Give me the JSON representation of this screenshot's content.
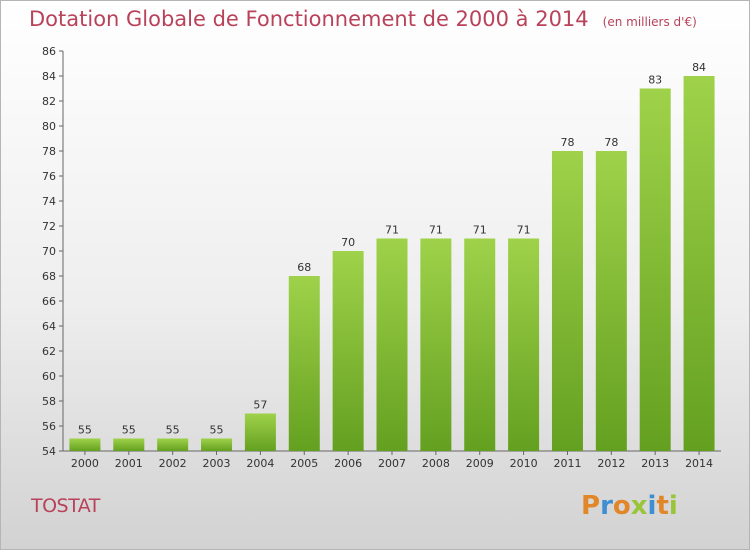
{
  "title": "Dotation Globale de Fonctionnement de 2000 à 2014",
  "subtitle": "(en milliers d'€)",
  "commune": "TOSTAT",
  "logo": {
    "letters": [
      "P",
      "r",
      "o",
      "x",
      "i",
      "t",
      "i"
    ],
    "colors": [
      "#e2862a",
      "#3d8fd1",
      "#e2862a",
      "#9ac43a",
      "#3d8fd1",
      "#e2862a",
      "#9ac43a"
    ]
  },
  "colors": {
    "bar": "#8cc63f",
    "bar_dark": "#6aa526",
    "title": "#b9425a"
  },
  "chart_data": {
    "type": "bar",
    "categories": [
      "2000",
      "2001",
      "2002",
      "2003",
      "2004",
      "2005",
      "2006",
      "2007",
      "2008",
      "2009",
      "2010",
      "2011",
      "2012",
      "2013",
      "2014"
    ],
    "values": [
      55,
      55,
      55,
      55,
      57,
      68,
      70,
      71,
      71,
      71,
      71,
      78,
      78,
      83,
      84
    ],
    "title": "Dotation Globale de Fonctionnement de 2000 à 2014",
    "xlabel": "",
    "ylabel": "",
    "ylim": [
      54,
      86
    ],
    "yticks": [
      54,
      56,
      58,
      60,
      62,
      64,
      66,
      68,
      70,
      72,
      74,
      76,
      78,
      80,
      82,
      84,
      86
    ],
    "grid": false
  }
}
